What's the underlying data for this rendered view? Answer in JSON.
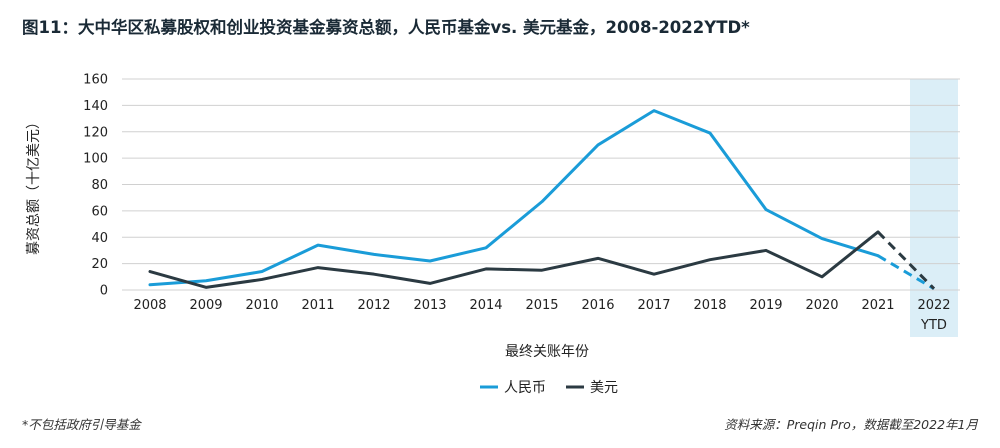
{
  "title": "图11：大中华区私募股权和创业投资基金募资总额，人民币基金vs. 美元基金，2008-2022YTD*",
  "footnote": "*不包括政府引导基金",
  "source": "资料来源：Preqin Pro，数据截至2022年1月",
  "colors": {
    "rmb": "#1a9cd8",
    "usd": "#2b3a42",
    "grid": "#d0d0d0",
    "highlight": "#dbeef7"
  },
  "chart_data": {
    "type": "line",
    "xlabel": "最终关账年份",
    "ylabel": "募资总额（十亿美元）",
    "ylim": [
      0,
      160
    ],
    "yticks": [
      "0",
      "20",
      "40",
      "60",
      "80",
      "100",
      "120",
      "140",
      "160"
    ],
    "categories": [
      "2008",
      "2009",
      "2010",
      "2011",
      "2012",
      "2013",
      "2014",
      "2015",
      "2016",
      "2017",
      "2018",
      "2019",
      "2020",
      "2021",
      "2022 YTD"
    ],
    "category_labels": [
      [
        "2008"
      ],
      [
        "2009"
      ],
      [
        "2010"
      ],
      [
        "2011"
      ],
      [
        "2012"
      ],
      [
        "2013"
      ],
      [
        "2014"
      ],
      [
        "2015"
      ],
      [
        "2016"
      ],
      [
        "2017"
      ],
      [
        "2018"
      ],
      [
        "2019"
      ],
      [
        "2020"
      ],
      [
        "2021"
      ],
      [
        "2022",
        "YTD"
      ]
    ],
    "highlighted_category": "2022 YTD",
    "dashed_last_segment": true,
    "grid": true,
    "legend_position": "bottom-center",
    "series": [
      {
        "name": "人民币",
        "color": "#1a9cd8",
        "values": [
          4,
          7,
          14,
          34,
          27,
          22,
          32,
          67,
          110,
          136,
          119,
          61,
          39,
          26,
          1
        ]
      },
      {
        "name": "美元",
        "color": "#2b3a42",
        "values": [
          14,
          2,
          8,
          17,
          12,
          5,
          16,
          15,
          24,
          12,
          23,
          30,
          10,
          44,
          1
        ]
      }
    ]
  }
}
